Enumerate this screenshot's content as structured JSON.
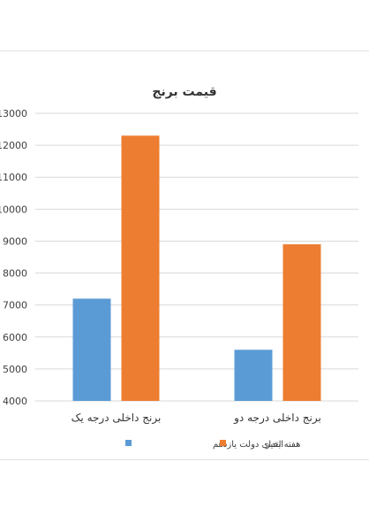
{
  "chart_data": {
    "type": "bar",
    "title": "قیمت برنج",
    "categories": [
      "برنج داخلی درجه یک",
      "برنج داخلی درجه دو"
    ],
    "series": [
      {
        "name": "ابتدای دولت یازدهم",
        "color": "#5b9bd5",
        "values": [
          7200,
          5600
        ]
      },
      {
        "name": "هفته اخیر",
        "color": "#ed7d31",
        "values": [
          12300,
          8900
        ]
      }
    ],
    "ylim": [
      4000,
      13000
    ],
    "yticks": [
      4000,
      5000,
      6000,
      7000,
      8000,
      9000,
      10000,
      11000,
      12000,
      13000
    ],
    "grid": true,
    "legend_position": "bottom"
  }
}
